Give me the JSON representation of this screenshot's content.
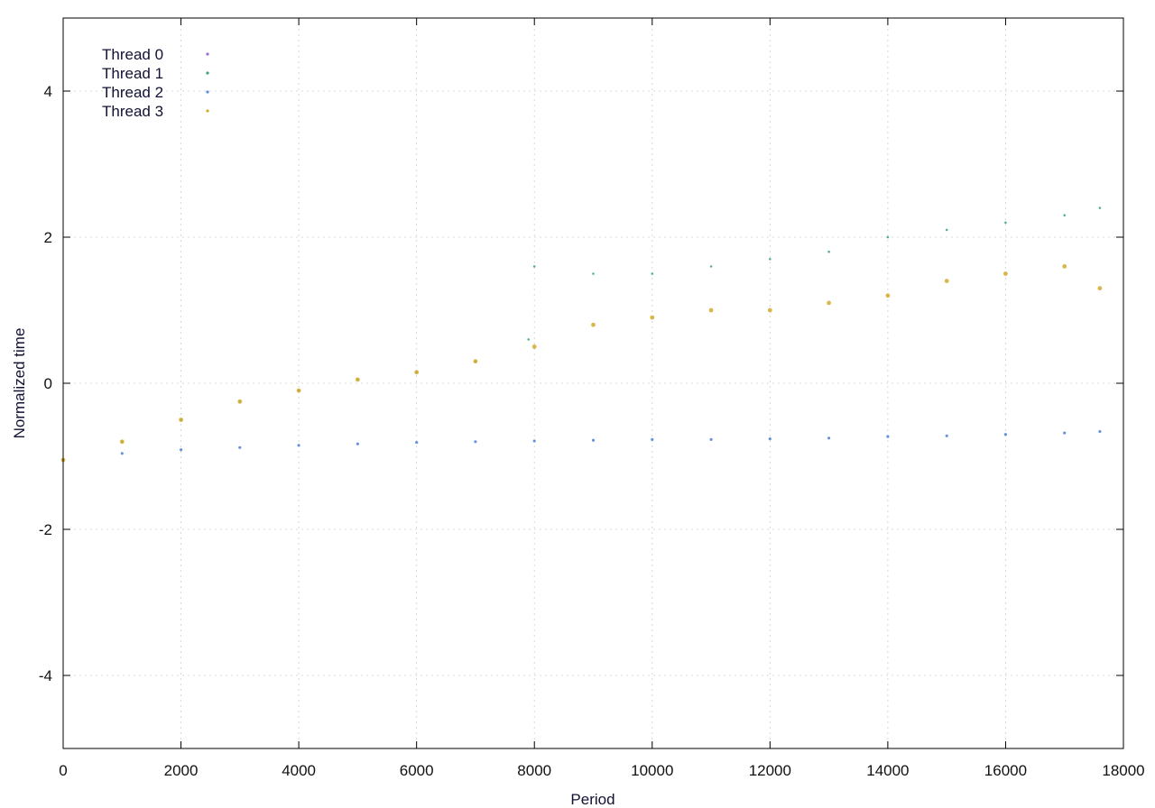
{
  "chart_data": {
    "type": "scatter",
    "title": "",
    "xlabel": "Period",
    "ylabel": "Normalized time",
    "xlim": [
      0,
      18000
    ],
    "ylim": [
      -5,
      5
    ],
    "xticks": [
      0,
      2000,
      4000,
      6000,
      8000,
      10000,
      12000,
      14000,
      16000,
      18000
    ],
    "yticks": [
      -4,
      -2,
      0,
      2,
      4
    ],
    "xtick_labels": [
      "0",
      "2000",
      "4000",
      "6000",
      "8000",
      "10000",
      "12000",
      "14000",
      "16000",
      "18000"
    ],
    "ytick_labels": [
      "-4",
      "-2",
      "0",
      "2",
      "4"
    ],
    "grid": true,
    "legend_position": "top-left",
    "series": [
      {
        "name": "Thread 0",
        "color": "#9c6fd0",
        "x": [
          1000,
          2000,
          3000,
          4000,
          5000,
          6000,
          7000,
          8000,
          9000,
          10000,
          11000,
          12000,
          13000,
          14000,
          15000,
          16000,
          17000,
          17600
        ],
        "y": [
          -0.96,
          -0.91,
          -0.88,
          -0.85,
          -0.83,
          -0.81,
          -0.8,
          -0.79,
          -0.78,
          -0.77,
          -0.77,
          -0.76,
          -0.75,
          -0.73,
          -0.72,
          -0.7,
          -0.68,
          -0.66
        ]
      },
      {
        "name": "Thread 1",
        "color": "#3aa672",
        "x": [
          0,
          1000,
          2000,
          3000,
          4000,
          5000,
          6000,
          7000,
          7900,
          8000,
          9000,
          10000,
          11000,
          12000,
          13000,
          14000,
          15000,
          16000,
          17000,
          17600
        ],
        "y": [
          -1.05,
          -0.8,
          -0.5,
          -0.25,
          -0.1,
          0.05,
          0.15,
          0.3,
          0.6,
          1.6,
          1.5,
          1.5,
          1.6,
          1.7,
          1.8,
          2.0,
          2.1,
          2.2,
          2.3,
          2.4
        ]
      },
      {
        "name": "Thread 2",
        "color": "#5a8fe0",
        "x": [
          1000,
          2000,
          3000,
          4000,
          5000,
          6000,
          7000,
          8000,
          9000,
          10000,
          11000,
          12000,
          13000,
          14000,
          15000,
          16000,
          17000,
          17600
        ],
        "y": [
          -0.96,
          -0.91,
          -0.88,
          -0.85,
          -0.83,
          -0.81,
          -0.8,
          -0.79,
          -0.78,
          -0.77,
          -0.77,
          -0.76,
          -0.75,
          -0.73,
          -0.72,
          -0.7,
          -0.68,
          -0.66
        ]
      },
      {
        "name": "Thread 3",
        "color": "#d4aa2e",
        "x": [
          0,
          1000,
          2000,
          3000,
          4000,
          5000,
          6000,
          7000,
          8000,
          9000,
          10000,
          11000,
          12000,
          13000,
          14000,
          15000,
          16000,
          17000,
          17600
        ],
        "y": [
          -1.05,
          -0.8,
          -0.5,
          -0.25,
          -0.1,
          0.05,
          0.15,
          0.3,
          0.5,
          0.8,
          0.9,
          1.0,
          1.0,
          1.1,
          1.2,
          1.4,
          1.5,
          1.6,
          1.3
        ]
      }
    ]
  }
}
